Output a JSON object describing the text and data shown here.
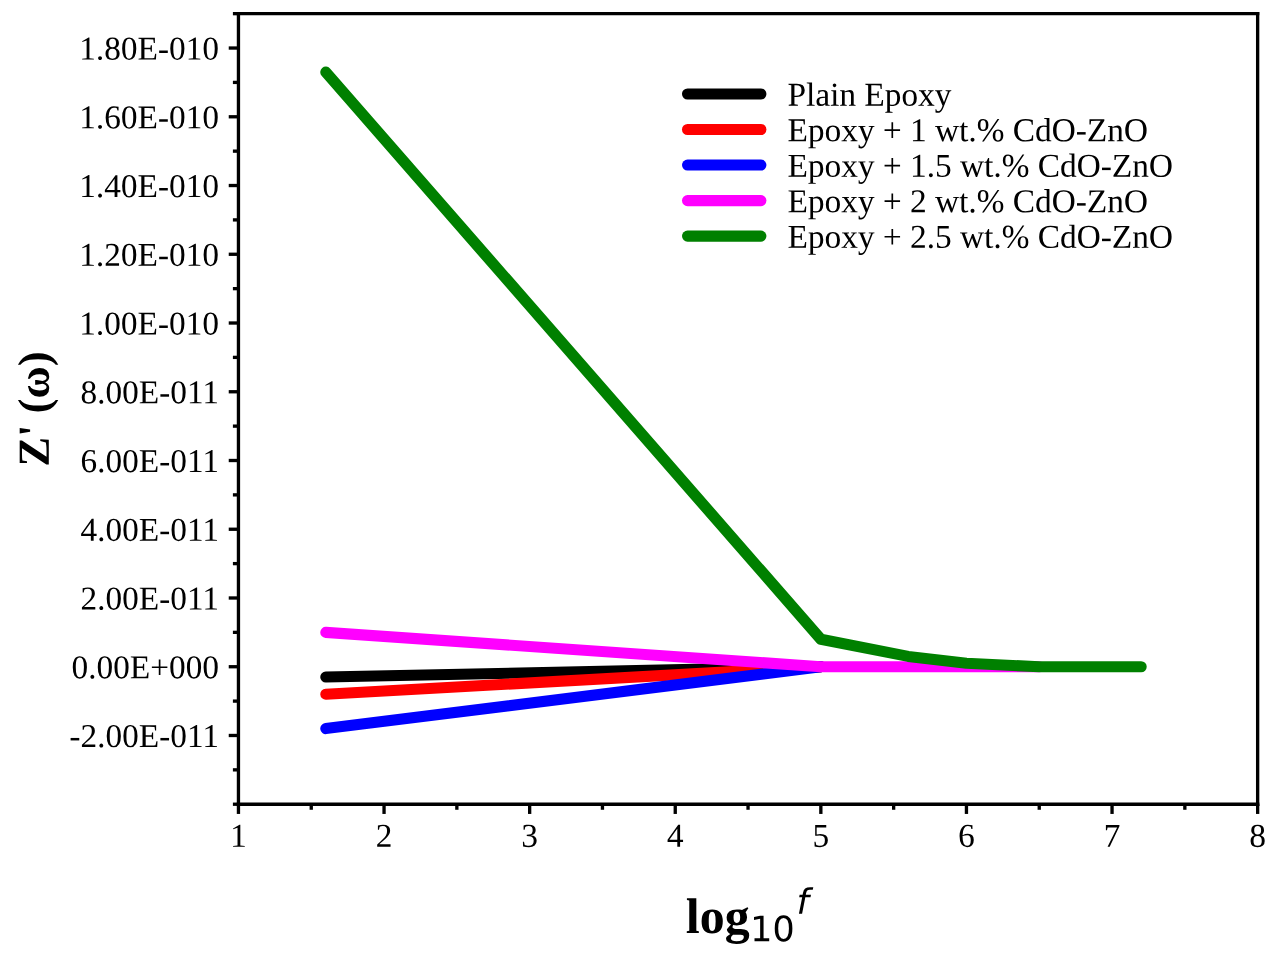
{
  "chart_data": {
    "type": "line",
    "xlabel": "log$_{10}$$^{f}$",
    "ylabel": "Z' (ω)",
    "x": [
      1.6,
      5,
      5.6,
      6,
      6.5,
      7.2
    ],
    "series": [
      {
        "name": "Plain Epoxy",
        "color": "#000000",
        "x": [
          1.6,
          5
        ],
        "values": [
          -3e-12,
          0
        ]
      },
      {
        "name": "Epoxy + 1 wt.% CdO-ZnO",
        "color": "#ff0000",
        "x": [
          1.6,
          5
        ],
        "values": [
          -8e-12,
          0
        ]
      },
      {
        "name": "Epoxy + 1.5 wt.% CdO-ZnO",
        "color": "#0000ff",
        "x": [
          1.6,
          5
        ],
        "values": [
          -1.8e-11,
          0
        ]
      },
      {
        "name": "Epoxy + 2 wt.% CdO-ZnO",
        "color": "#ff00ff",
        "x": [
          1.6,
          5,
          6.5
        ],
        "values": [
          1e-11,
          0,
          0
        ]
      },
      {
        "name": "Epoxy + 2.5 wt.% CdO-ZnO",
        "color": "#008000",
        "values": [
          1.73e-10,
          8e-12,
          3e-12,
          1e-12,
          0,
          0
        ]
      }
    ],
    "xlim": [
      1,
      8
    ],
    "xticks": [
      1,
      2,
      3,
      4,
      5,
      6,
      7,
      8
    ],
    "ylim": [
      -4e-11,
      1.9e-10
    ],
    "yticks": [
      {
        "value": -2e-11,
        "label": "-2.00E-011"
      },
      {
        "value": 0,
        "label": "0.00E+000"
      },
      {
        "value": 2e-11,
        "label": "2.00E-011"
      },
      {
        "value": 4e-11,
        "label": "4.00E-011"
      },
      {
        "value": 6e-11,
        "label": "6.00E-011"
      },
      {
        "value": 8e-11,
        "label": "8.00E-011"
      },
      {
        "value": 1e-10,
        "label": "1.00E-010"
      },
      {
        "value": 1.2e-10,
        "label": "1.20E-010"
      },
      {
        "value": 1.4e-10,
        "label": "1.40E-010"
      },
      {
        "value": 1.6e-10,
        "label": "1.60E-010"
      },
      {
        "value": 1.8e-10,
        "label": "1.80E-010"
      }
    ],
    "legend": "top right",
    "grid": false,
    "marker": "none",
    "line_style": "solid"
  }
}
